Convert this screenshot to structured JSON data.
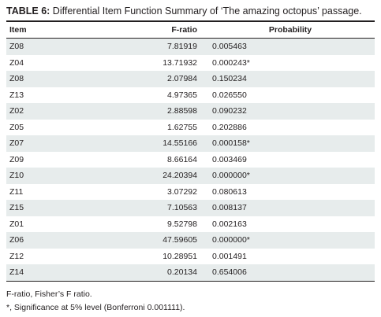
{
  "caption": {
    "label": "TABLE 6:",
    "text": " Differential Item Function Summary of ‘The amazing octopus’ passage."
  },
  "table": {
    "headers": {
      "item": "Item",
      "f_ratio": "F-ratio",
      "probability": "Probability"
    },
    "rows": [
      {
        "item": "Z08",
        "f_ratio": "7.81919",
        "probability": "0.005463"
      },
      {
        "item": "Z04",
        "f_ratio": "13.71932",
        "probability": "0.000243*"
      },
      {
        "item": "Z08",
        "f_ratio": "2.07984",
        "probability": "0.150234"
      },
      {
        "item": "Z13",
        "f_ratio": "4.97365",
        "probability": "0.026550"
      },
      {
        "item": "Z02",
        "f_ratio": "2.88598",
        "probability": "0.090232"
      },
      {
        "item": "Z05",
        "f_ratio": "1.62755",
        "probability": "0.202886"
      },
      {
        "item": "Z07",
        "f_ratio": "14.55166",
        "probability": "0.000158*"
      },
      {
        "item": "Z09",
        "f_ratio": "8.66164",
        "probability": "0.003469"
      },
      {
        "item": "Z10",
        "f_ratio": "24.20394",
        "probability": "0.000000*"
      },
      {
        "item": "Z11",
        "f_ratio": "3.07292",
        "probability": "0.080613"
      },
      {
        "item": "Z15",
        "f_ratio": "7.10563",
        "probability": "0.008137"
      },
      {
        "item": "Z01",
        "f_ratio": "9.52798",
        "probability": "0.002163"
      },
      {
        "item": "Z06",
        "f_ratio": "47.59605",
        "probability": "0.000000*"
      },
      {
        "item": "Z12",
        "f_ratio": "10.28951",
        "probability": "0.001491"
      },
      {
        "item": "Z14",
        "f_ratio": "0.20134",
        "probability": "0.654006"
      }
    ]
  },
  "notes": [
    "F-ratio, Fisher’s F ratio.",
    "*, Significance at 5% level (Bonferroni 0.001111)."
  ],
  "colors": {
    "stripe": "#e7ecec",
    "text": "#231f20",
    "rule": "#231f20"
  }
}
